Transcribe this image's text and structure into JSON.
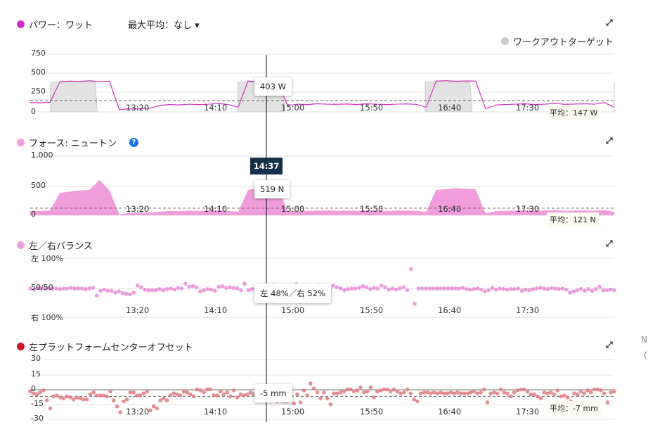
{
  "power": {
    "title": "パワー：ワット",
    "max_avg_label": "最大平均：なし",
    "legend_target": "ワークアウトターゲット",
    "y_ticks": [
      "750",
      "500",
      "250",
      "0"
    ],
    "tooltip": "403 W",
    "avg_label": "平均：147 W",
    "color": "#d030c0",
    "target_color": "#e2e2e2"
  },
  "force": {
    "title": "フォース: ニュートン",
    "y_ticks": [
      "1,000",
      "500",
      "0"
    ],
    "tooltip": "519 N",
    "avg_label": "平均：121 N",
    "cursor_time": "14:37",
    "color": "#f09ddc"
  },
  "balance": {
    "title": "左／右バランス",
    "y_ticks": [
      "左 100%",
      "50/50",
      "右 100%"
    ],
    "tooltip": "左 48%／右 52%",
    "color": "#e88ad8"
  },
  "offset": {
    "title": "左プラットフォームセンターオフセット",
    "y_ticks": [
      "30",
      "15",
      "0",
      "-15",
      "-30"
    ],
    "tooltip": "-5 mm",
    "avg_label": "平均：-7 mm",
    "color": "#e07a80",
    "title_dot_color": "#c8102e"
  },
  "x_ticks": [
    "13:20",
    "14:10",
    "15:00",
    "15:50",
    "16:40",
    "17:30"
  ],
  "edge_text": [
    "N",
    "("
  ],
  "chart_data": [
    {
      "type": "line",
      "name": "power",
      "ylim": [
        0,
        750
      ],
      "avg": 147,
      "time_range": [
        "12:12",
        "18:26"
      ],
      "values": [
        120,
        118,
        125,
        390,
        400,
        395,
        405,
        390,
        400,
        30,
        40,
        40,
        45,
        80,
        95,
        90,
        100,
        95,
        100,
        110,
        95,
        60,
        400,
        395,
        403,
        400,
        80,
        100,
        95,
        105,
        100,
        98,
        102,
        96,
        105,
        100,
        95,
        100,
        104,
        98,
        60,
        400,
        405,
        398,
        402,
        400,
        40,
        90,
        95,
        100,
        105,
        95,
        100,
        110,
        98,
        102,
        105,
        100,
        120,
        60
      ],
      "targets": [
        {
          "start": "12:25",
          "end": "12:55",
          "value": 390
        },
        {
          "start": "14:25",
          "end": "14:55",
          "value": 390
        },
        {
          "start": "16:25",
          "end": "16:55",
          "value": 390
        }
      ]
    },
    {
      "type": "area",
      "name": "force",
      "ylim": [
        0,
        1000
      ],
      "avg": 121,
      "values": [
        70,
        72,
        80,
        380,
        400,
        420,
        430,
        600,
        420,
        15,
        40,
        50,
        45,
        60,
        75,
        70,
        78,
        74,
        80,
        85,
        75,
        60,
        430,
        460,
        519,
        500,
        65,
        78,
        75,
        82,
        80,
        76,
        82,
        75,
        84,
        80,
        74,
        78,
        82,
        76,
        60,
        430,
        440,
        460,
        450,
        440,
        30,
        70,
        75,
        80,
        84,
        75,
        80,
        86,
        76,
        80,
        82,
        78,
        90,
        60
      ]
    },
    {
      "type": "scatter",
      "name": "balance",
      "unit": "left %",
      "ylim": [
        0,
        100
      ],
      "values": [
        50,
        48,
        51,
        50,
        50,
        50,
        50,
        50,
        49,
        50,
        50,
        51,
        50,
        50,
        50,
        49,
        50,
        51,
        38,
        46,
        48,
        46,
        46,
        43,
        45,
        42,
        41,
        40,
        43,
        55,
        52,
        48,
        47,
        47,
        47,
        49,
        47,
        49,
        50,
        48,
        51,
        50,
        58,
        53,
        54,
        52,
        45,
        47,
        49,
        48,
        46,
        53,
        54,
        51,
        52,
        51,
        50,
        47,
        58,
        47,
        49,
        50,
        50,
        49,
        52,
        55,
        56,
        53,
        54,
        51,
        50,
        45,
        57,
        52,
        51,
        53,
        49,
        54,
        56,
        50,
        52,
        50,
        55,
        52,
        50,
        47,
        49,
        50,
        50,
        51,
        54,
        52,
        49,
        51,
        50,
        55,
        52,
        48,
        50,
        48,
        50,
        52,
        47,
        83,
        24,
        50,
        50,
        50,
        50,
        50,
        50,
        50,
        50,
        50,
        50,
        50,
        50,
        51,
        49,
        48,
        49,
        50,
        48,
        45,
        47,
        51,
        48,
        50,
        49,
        48,
        49,
        49,
        50,
        46,
        48,
        47,
        49,
        50,
        51,
        50,
        49,
        51,
        50,
        49,
        50,
        48,
        43,
        45,
        47,
        49,
        46,
        49,
        46,
        49,
        53,
        47,
        47,
        48,
        47
      ]
    },
    {
      "type": "scatter",
      "name": "offset",
      "unit": "mm",
      "ylim": [
        -30,
        30
      ],
      "avg": -7,
      "values": [
        -2,
        -4,
        -5,
        -3,
        -1,
        -11,
        -19,
        -7,
        -6,
        -8,
        -9,
        -7,
        -8,
        -10,
        -8,
        -9,
        -10,
        -10,
        -5,
        -3,
        -6,
        -6,
        -6,
        -7,
        -2,
        -11,
        -17,
        -23,
        -12,
        -10,
        -3,
        -3,
        -6,
        -6,
        -4,
        -2,
        -21,
        -17,
        -19,
        -11,
        -9,
        -11,
        -6,
        -4,
        -5,
        -6,
        -2,
        -3,
        -5,
        -7,
        0,
        -1,
        -3,
        0,
        0,
        -6,
        -6,
        -2,
        -5,
        -3,
        -7,
        -1,
        -8,
        -5,
        -6,
        -5,
        -3,
        -5,
        -3,
        -8,
        -4,
        -5,
        -4,
        -6,
        -12,
        -3,
        -12,
        -12,
        -6,
        -14,
        -5,
        -13,
        -1,
        -6,
        6,
        1,
        -3,
        -9,
        -3,
        -9,
        -15,
        -4,
        -4,
        -3,
        -2,
        0,
        0,
        -2,
        -1,
        2,
        -3,
        -2,
        2,
        -8,
        -2,
        -1,
        0,
        0,
        -2,
        0,
        -2,
        -4,
        -3,
        0,
        -4,
        -10,
        -12,
        -4,
        -3,
        -3,
        -4,
        -3,
        -4,
        -3,
        -4,
        -4,
        -3,
        -4,
        -3,
        -4,
        -4,
        -4,
        -3,
        -2,
        -4,
        -3,
        0,
        -13,
        -4,
        -3,
        -4,
        0,
        -3,
        -4,
        -7,
        -3,
        -1,
        0,
        0,
        -2,
        -5,
        -5,
        -7,
        -9,
        -3,
        -4,
        -3,
        -5,
        -1,
        -7,
        -6,
        -8,
        -12,
        -4,
        -5,
        -2,
        -4,
        -1,
        -3,
        0,
        0,
        -1,
        -4,
        -13,
        -3,
        -2
      ]
    }
  ]
}
